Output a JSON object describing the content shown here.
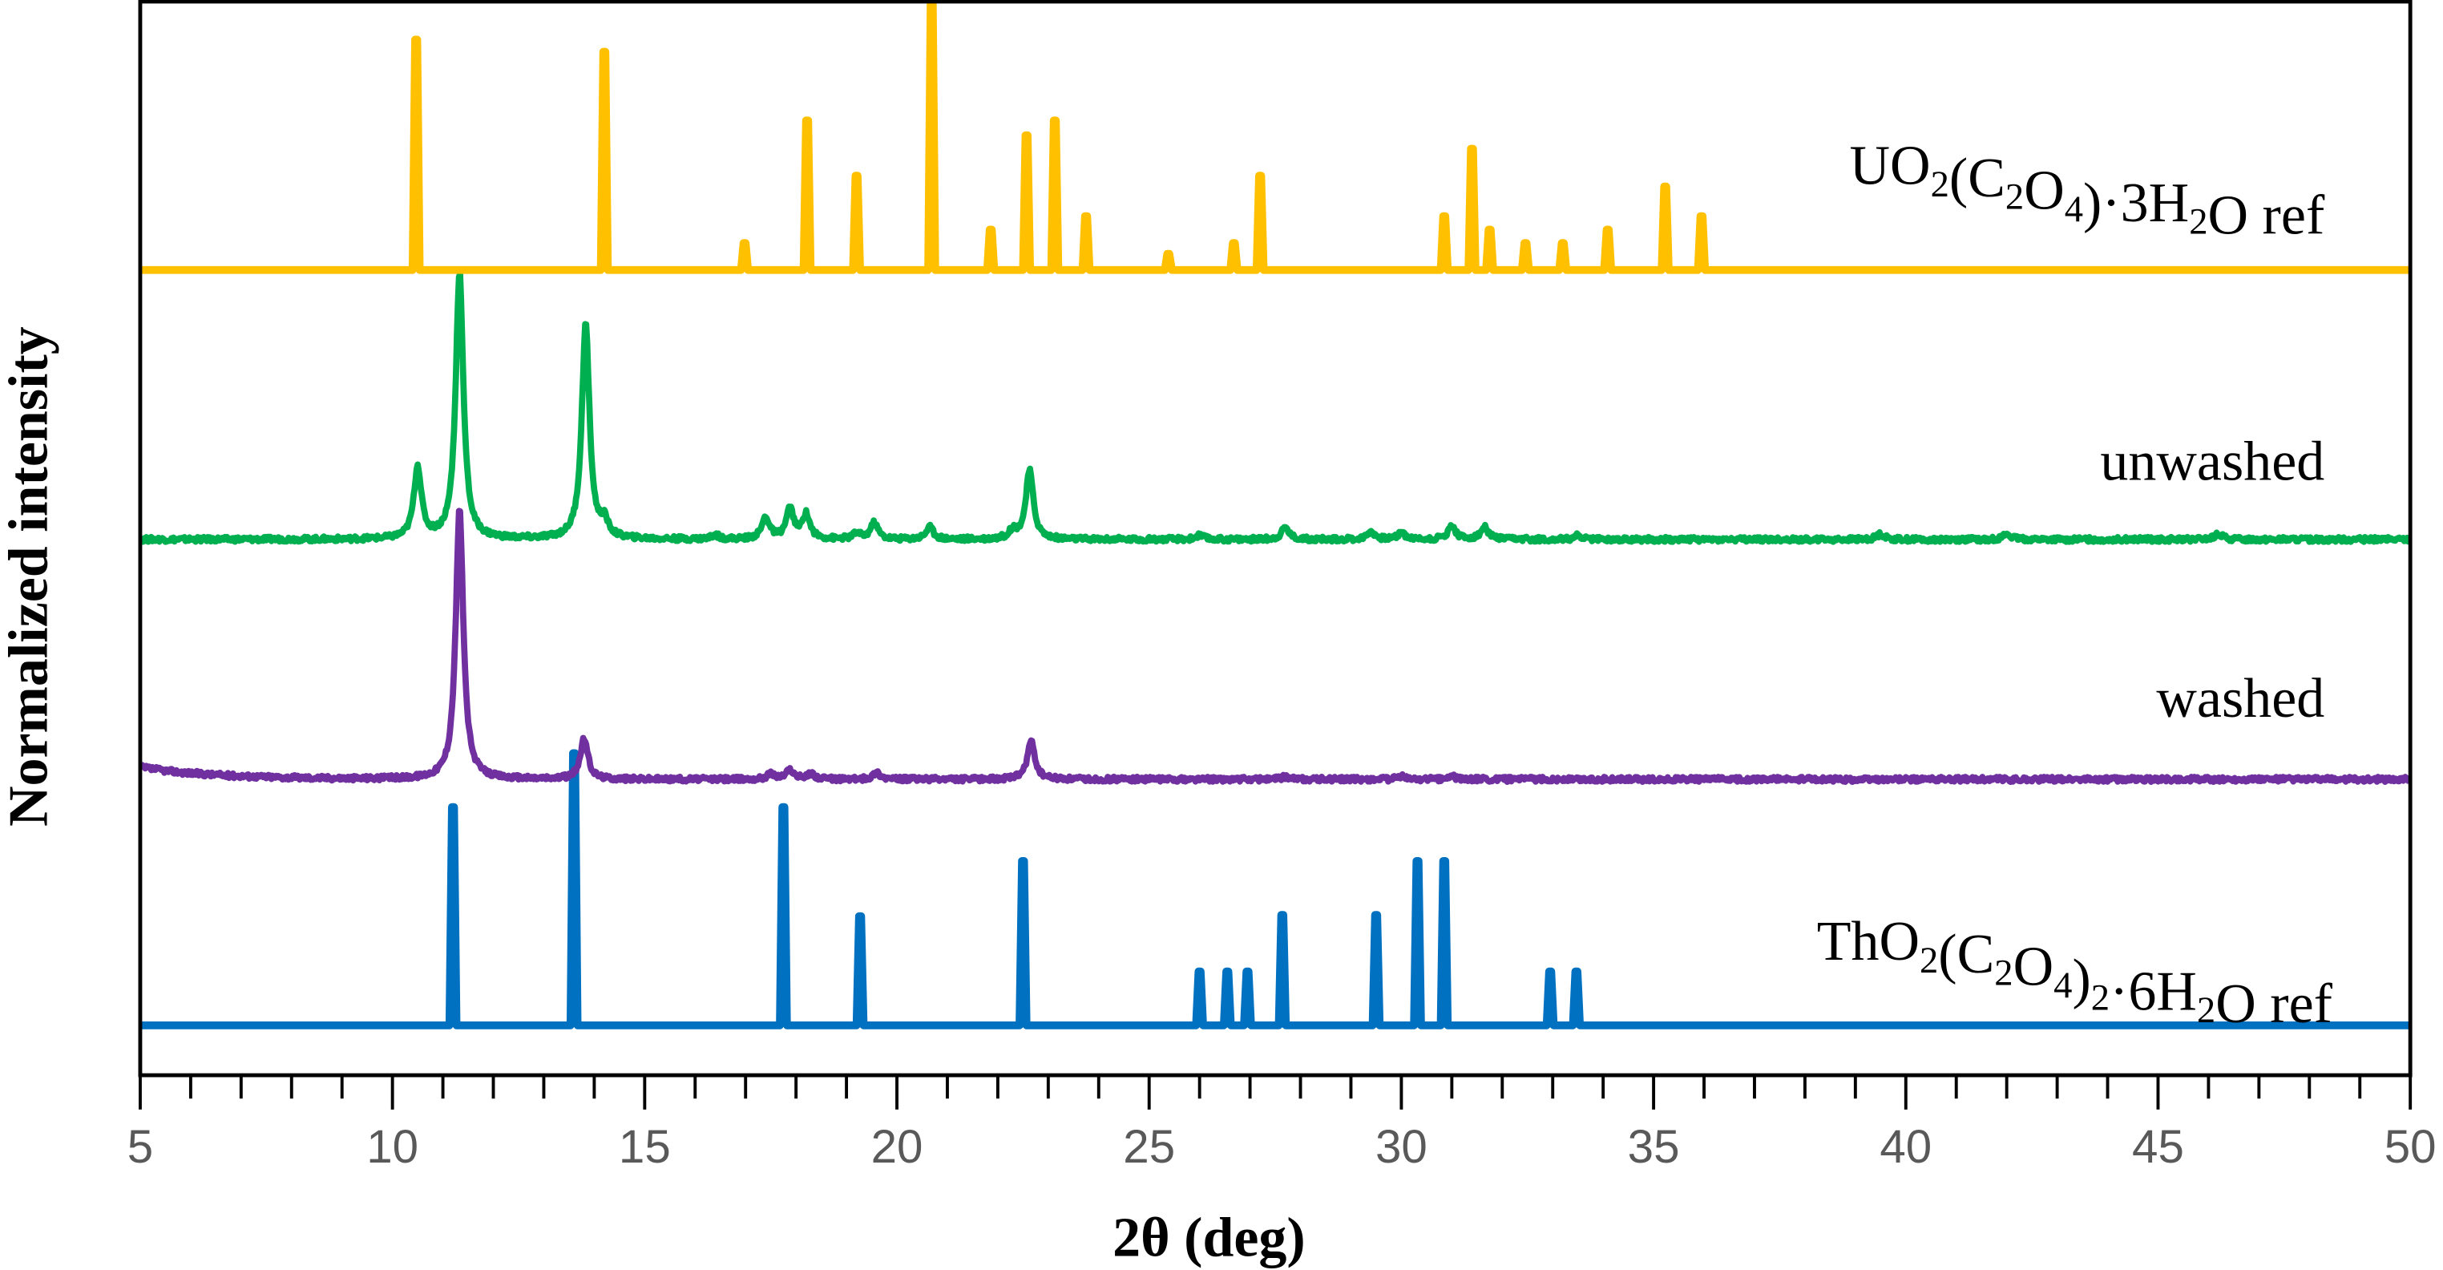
{
  "chart_data": {
    "type": "line",
    "title": "",
    "xlabel": "2θ (deg)",
    "ylabel": "Normalized intensity",
    "xlim": [
      5,
      50
    ],
    "ylim": [
      0,
      3.99
    ],
    "x_major_ticks": [
      5,
      10,
      15,
      20,
      25,
      30,
      35,
      40,
      45,
      50
    ],
    "x_tick_labels": [
      "5",
      "10",
      "15",
      "20",
      "25",
      "30",
      "35",
      "40",
      "45",
      "50"
    ],
    "x_minor_step": 1,
    "grid": false,
    "legend": "labels placed at right of each trace",
    "series": [
      {
        "name": "UO2(C2O4)·3H2O ref",
        "kind": "reference",
        "color": "#FFC000",
        "offset": 2.988,
        "peaks": [
          [
            10.47,
            0.855
          ],
          [
            14.2,
            0.81
          ],
          [
            16.98,
            0.1
          ],
          [
            18.22,
            0.555
          ],
          [
            19.2,
            0.35
          ],
          [
            20.69,
            1.0
          ],
          [
            21.86,
            0.15
          ],
          [
            22.57,
            0.5
          ],
          [
            23.13,
            0.555
          ],
          [
            23.75,
            0.2
          ],
          [
            25.38,
            0.06
          ],
          [
            26.68,
            0.1
          ],
          [
            27.2,
            0.35
          ],
          [
            30.85,
            0.2
          ],
          [
            31.4,
            0.45
          ],
          [
            31.75,
            0.15
          ],
          [
            32.46,
            0.1
          ],
          [
            33.2,
            0.1
          ],
          [
            34.09,
            0.15
          ],
          [
            35.23,
            0.31
          ],
          [
            35.95,
            0.2
          ]
        ]
      },
      {
        "name": "unwashed",
        "kind": "measured",
        "color": "#00B050",
        "offset": 1.988,
        "peaks": [
          [
            10.5,
            0.265
          ],
          [
            11.33,
            0.99
          ],
          [
            13.83,
            0.8
          ],
          [
            14.2,
            0.055
          ],
          [
            16.4,
            0.015
          ],
          [
            17.4,
            0.08
          ],
          [
            17.88,
            0.11
          ],
          [
            18.2,
            0.09
          ],
          [
            19.2,
            0.02
          ],
          [
            19.55,
            0.06
          ],
          [
            20.65,
            0.045
          ],
          [
            22.3,
            0.03
          ],
          [
            22.63,
            0.255
          ],
          [
            26.0,
            0.015
          ],
          [
            27.7,
            0.045
          ],
          [
            29.4,
            0.03
          ],
          [
            30.0,
            0.025
          ],
          [
            31.0,
            0.05
          ],
          [
            31.65,
            0.045
          ],
          [
            33.5,
            0.015
          ],
          [
            39.5,
            0.02
          ],
          [
            42.0,
            0.02
          ],
          [
            46.2,
            0.02
          ]
        ]
      },
      {
        "name": "washed",
        "kind": "measured",
        "color": "#7030A0",
        "offset": 1.098,
        "peaks": [
          [
            11.33,
            1.0
          ],
          [
            13.8,
            0.15
          ],
          [
            17.5,
            0.02
          ],
          [
            17.88,
            0.035
          ],
          [
            18.3,
            0.02
          ],
          [
            19.6,
            0.025
          ],
          [
            22.66,
            0.14
          ],
          [
            27.7,
            0.01
          ],
          [
            30.0,
            0.01
          ],
          [
            31.0,
            0.01
          ]
        ]
      },
      {
        "name": "ThO2(C2O4)2·6H2O ref",
        "kind": "reference",
        "color": "#0070C0",
        "offset": 0.185,
        "peaks": [
          [
            11.2,
            0.81
          ],
          [
            13.6,
            1.01
          ],
          [
            17.75,
            0.81
          ],
          [
            19.27,
            0.405
          ],
          [
            22.5,
            0.61
          ],
          [
            26.0,
            0.2
          ],
          [
            26.55,
            0.2
          ],
          [
            26.95,
            0.2
          ],
          [
            27.64,
            0.41
          ],
          [
            29.5,
            0.41
          ],
          [
            30.32,
            0.61
          ],
          [
            30.85,
            0.61
          ],
          [
            32.95,
            0.2
          ],
          [
            33.47,
            0.2
          ]
        ]
      }
    ]
  }
}
